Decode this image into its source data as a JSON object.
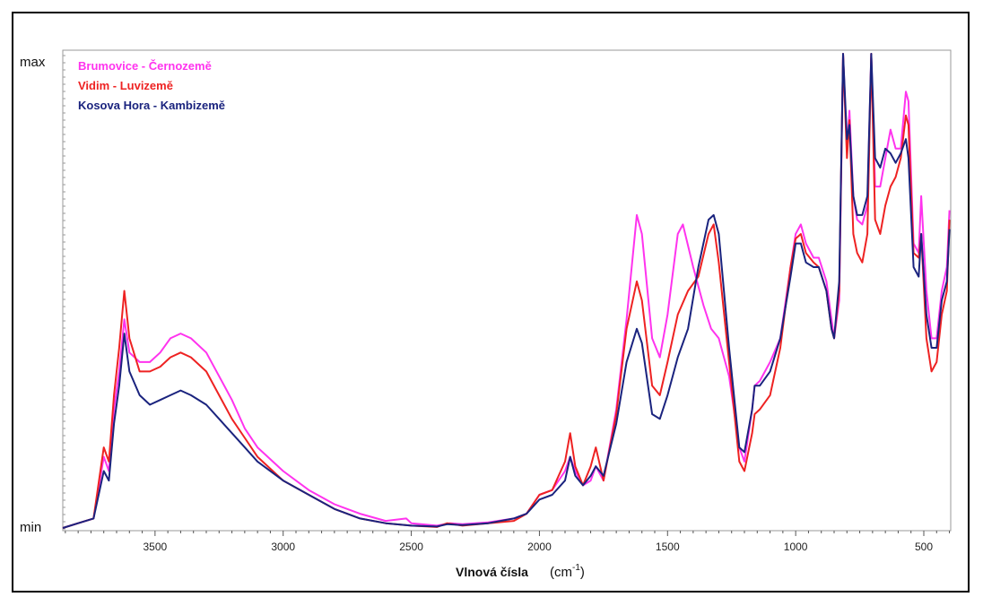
{
  "chart_data": {
    "type": "line",
    "xlabel": "Vlnová čísla",
    "xunit_prefix": "(cm",
    "xunit_sup": "-1",
    "xunit_suffix": ")",
    "x_reversed": true,
    "xlim": [
      3860,
      395
    ],
    "ylim": [
      0,
      1
    ],
    "y_tick_labels": {
      "max": "max",
      "min": "min"
    },
    "x_ticks": [
      3500,
      3000,
      2500,
      2000,
      1500,
      1000,
      500
    ],
    "x_tick_labels": [
      "3500",
      "3000",
      "2500",
      "2000",
      "1500",
      "1000",
      "500"
    ],
    "grid": false,
    "legend": "top-left",
    "series": [
      {
        "name": "Brumovice - Černozemě",
        "color": "#ff33ee",
        "points": [
          [
            3860,
            0.0
          ],
          [
            3800,
            0.01
          ],
          [
            3740,
            0.02
          ],
          [
            3700,
            0.15
          ],
          [
            3680,
            0.12
          ],
          [
            3660,
            0.25
          ],
          [
            3640,
            0.33
          ],
          [
            3620,
            0.44
          ],
          [
            3600,
            0.37
          ],
          [
            3560,
            0.35
          ],
          [
            3520,
            0.35
          ],
          [
            3480,
            0.37
          ],
          [
            3440,
            0.4
          ],
          [
            3400,
            0.41
          ],
          [
            3360,
            0.4
          ],
          [
            3300,
            0.37
          ],
          [
            3250,
            0.32
          ],
          [
            3200,
            0.27
          ],
          [
            3150,
            0.21
          ],
          [
            3100,
            0.17
          ],
          [
            3000,
            0.12
          ],
          [
            2900,
            0.08
          ],
          [
            2800,
            0.05
          ],
          [
            2700,
            0.03
          ],
          [
            2600,
            0.015
          ],
          [
            2520,
            0.02
          ],
          [
            2500,
            0.01
          ],
          [
            2400,
            0.005
          ],
          [
            2350,
            0.01
          ],
          [
            2300,
            0.008
          ],
          [
            2200,
            0.012
          ],
          [
            2100,
            0.02
          ],
          [
            2050,
            0.03
          ],
          [
            2000,
            0.07
          ],
          [
            1950,
            0.08
          ],
          [
            1900,
            0.12
          ],
          [
            1880,
            0.15
          ],
          [
            1860,
            0.12
          ],
          [
            1830,
            0.09
          ],
          [
            1800,
            0.1
          ],
          [
            1780,
            0.13
          ],
          [
            1750,
            0.1
          ],
          [
            1700,
            0.25
          ],
          [
            1660,
            0.44
          ],
          [
            1620,
            0.66
          ],
          [
            1600,
            0.62
          ],
          [
            1560,
            0.4
          ],
          [
            1530,
            0.36
          ],
          [
            1500,
            0.45
          ],
          [
            1460,
            0.62
          ],
          [
            1440,
            0.64
          ],
          [
            1400,
            0.55
          ],
          [
            1360,
            0.47
          ],
          [
            1330,
            0.42
          ],
          [
            1300,
            0.4
          ],
          [
            1260,
            0.32
          ],
          [
            1220,
            0.17
          ],
          [
            1200,
            0.14
          ],
          [
            1170,
            0.25
          ],
          [
            1160,
            0.3
          ],
          [
            1140,
            0.31
          ],
          [
            1100,
            0.35
          ],
          [
            1060,
            0.4
          ],
          [
            1020,
            0.55
          ],
          [
            1000,
            0.62
          ],
          [
            980,
            0.64
          ],
          [
            960,
            0.6
          ],
          [
            930,
            0.57
          ],
          [
            910,
            0.57
          ],
          [
            880,
            0.52
          ],
          [
            860,
            0.44
          ],
          [
            850,
            0.4
          ],
          [
            830,
            0.48
          ],
          [
            815,
            1.0
          ],
          [
            800,
            0.8
          ],
          [
            790,
            0.88
          ],
          [
            775,
            0.7
          ],
          [
            760,
            0.65
          ],
          [
            740,
            0.64
          ],
          [
            720,
            0.68
          ],
          [
            705,
            1.0
          ],
          [
            690,
            0.72
          ],
          [
            670,
            0.72
          ],
          [
            650,
            0.78
          ],
          [
            630,
            0.84
          ],
          [
            610,
            0.8
          ],
          [
            590,
            0.8
          ],
          [
            570,
            0.92
          ],
          [
            560,
            0.9
          ],
          [
            540,
            0.6
          ],
          [
            520,
            0.58
          ],
          [
            510,
            0.7
          ],
          [
            490,
            0.5
          ],
          [
            470,
            0.4
          ],
          [
            450,
            0.4
          ],
          [
            430,
            0.5
          ],
          [
            410,
            0.55
          ],
          [
            400,
            0.67
          ]
        ]
      },
      {
        "name": "Vidim - Luvizemě",
        "color": "#ee2222",
        "points": [
          [
            3860,
            0.0
          ],
          [
            3800,
            0.01
          ],
          [
            3740,
            0.02
          ],
          [
            3700,
            0.17
          ],
          [
            3680,
            0.14
          ],
          [
            3660,
            0.28
          ],
          [
            3640,
            0.38
          ],
          [
            3620,
            0.5
          ],
          [
            3600,
            0.4
          ],
          [
            3560,
            0.33
          ],
          [
            3520,
            0.33
          ],
          [
            3480,
            0.34
          ],
          [
            3440,
            0.36
          ],
          [
            3400,
            0.37
          ],
          [
            3360,
            0.36
          ],
          [
            3300,
            0.33
          ],
          [
            3250,
            0.28
          ],
          [
            3200,
            0.23
          ],
          [
            3150,
            0.19
          ],
          [
            3100,
            0.15
          ],
          [
            3000,
            0.1
          ],
          [
            2900,
            0.07
          ],
          [
            2800,
            0.04
          ],
          [
            2700,
            0.02
          ],
          [
            2600,
            0.01
          ],
          [
            2500,
            0.005
          ],
          [
            2400,
            0.002
          ],
          [
            2360,
            0.01
          ],
          [
            2300,
            0.005
          ],
          [
            2200,
            0.01
          ],
          [
            2100,
            0.015
          ],
          [
            2050,
            0.03
          ],
          [
            2000,
            0.07
          ],
          [
            1950,
            0.08
          ],
          [
            1900,
            0.14
          ],
          [
            1880,
            0.2
          ],
          [
            1860,
            0.13
          ],
          [
            1830,
            0.09
          ],
          [
            1800,
            0.13
          ],
          [
            1780,
            0.17
          ],
          [
            1750,
            0.1
          ],
          [
            1700,
            0.24
          ],
          [
            1660,
            0.42
          ],
          [
            1620,
            0.52
          ],
          [
            1600,
            0.48
          ],
          [
            1560,
            0.3
          ],
          [
            1530,
            0.28
          ],
          [
            1500,
            0.35
          ],
          [
            1460,
            0.45
          ],
          [
            1420,
            0.5
          ],
          [
            1380,
            0.53
          ],
          [
            1340,
            0.62
          ],
          [
            1320,
            0.64
          ],
          [
            1300,
            0.56
          ],
          [
            1260,
            0.35
          ],
          [
            1220,
            0.14
          ],
          [
            1200,
            0.12
          ],
          [
            1170,
            0.2
          ],
          [
            1160,
            0.24
          ],
          [
            1140,
            0.25
          ],
          [
            1100,
            0.28
          ],
          [
            1060,
            0.38
          ],
          [
            1020,
            0.55
          ],
          [
            1000,
            0.61
          ],
          [
            980,
            0.62
          ],
          [
            960,
            0.58
          ],
          [
            930,
            0.56
          ],
          [
            910,
            0.55
          ],
          [
            880,
            0.5
          ],
          [
            860,
            0.42
          ],
          [
            850,
            0.4
          ],
          [
            830,
            0.5
          ],
          [
            815,
            1.0
          ],
          [
            800,
            0.78
          ],
          [
            790,
            0.86
          ],
          [
            775,
            0.62
          ],
          [
            760,
            0.58
          ],
          [
            740,
            0.56
          ],
          [
            720,
            0.62
          ],
          [
            705,
            1.0
          ],
          [
            690,
            0.65
          ],
          [
            670,
            0.62
          ],
          [
            650,
            0.68
          ],
          [
            630,
            0.72
          ],
          [
            610,
            0.74
          ],
          [
            590,
            0.78
          ],
          [
            570,
            0.87
          ],
          [
            560,
            0.85
          ],
          [
            540,
            0.58
          ],
          [
            520,
            0.57
          ],
          [
            510,
            0.62
          ],
          [
            490,
            0.4
          ],
          [
            470,
            0.33
          ],
          [
            450,
            0.35
          ],
          [
            430,
            0.45
          ],
          [
            410,
            0.5
          ],
          [
            400,
            0.65
          ]
        ]
      },
      {
        "name": "Kosova Hora - Kambizemě",
        "color": "#1a237e",
        "points": [
          [
            3860,
            0.0
          ],
          [
            3800,
            0.01
          ],
          [
            3740,
            0.02
          ],
          [
            3700,
            0.12
          ],
          [
            3680,
            0.1
          ],
          [
            3660,
            0.22
          ],
          [
            3640,
            0.3
          ],
          [
            3620,
            0.41
          ],
          [
            3600,
            0.33
          ],
          [
            3560,
            0.28
          ],
          [
            3520,
            0.26
          ],
          [
            3480,
            0.27
          ],
          [
            3440,
            0.28
          ],
          [
            3400,
            0.29
          ],
          [
            3360,
            0.28
          ],
          [
            3300,
            0.26
          ],
          [
            3250,
            0.23
          ],
          [
            3200,
            0.2
          ],
          [
            3150,
            0.17
          ],
          [
            3100,
            0.14
          ],
          [
            3000,
            0.1
          ],
          [
            2900,
            0.07
          ],
          [
            2800,
            0.04
          ],
          [
            2700,
            0.02
          ],
          [
            2600,
            0.01
          ],
          [
            2500,
            0.005
          ],
          [
            2400,
            0.003
          ],
          [
            2360,
            0.008
          ],
          [
            2300,
            0.006
          ],
          [
            2200,
            0.01
          ],
          [
            2100,
            0.02
          ],
          [
            2050,
            0.03
          ],
          [
            2000,
            0.06
          ],
          [
            1950,
            0.07
          ],
          [
            1900,
            0.1
          ],
          [
            1880,
            0.15
          ],
          [
            1860,
            0.11
          ],
          [
            1830,
            0.09
          ],
          [
            1800,
            0.11
          ],
          [
            1780,
            0.13
          ],
          [
            1750,
            0.11
          ],
          [
            1700,
            0.22
          ],
          [
            1660,
            0.35
          ],
          [
            1620,
            0.42
          ],
          [
            1600,
            0.39
          ],
          [
            1560,
            0.24
          ],
          [
            1530,
            0.23
          ],
          [
            1500,
            0.28
          ],
          [
            1460,
            0.36
          ],
          [
            1420,
            0.42
          ],
          [
            1380,
            0.55
          ],
          [
            1340,
            0.65
          ],
          [
            1320,
            0.66
          ],
          [
            1300,
            0.62
          ],
          [
            1260,
            0.38
          ],
          [
            1220,
            0.17
          ],
          [
            1200,
            0.16
          ],
          [
            1170,
            0.25
          ],
          [
            1160,
            0.3
          ],
          [
            1140,
            0.3
          ],
          [
            1100,
            0.33
          ],
          [
            1060,
            0.4
          ],
          [
            1020,
            0.53
          ],
          [
            1000,
            0.6
          ],
          [
            980,
            0.6
          ],
          [
            960,
            0.56
          ],
          [
            930,
            0.55
          ],
          [
            910,
            0.55
          ],
          [
            880,
            0.5
          ],
          [
            860,
            0.42
          ],
          [
            850,
            0.4
          ],
          [
            830,
            0.52
          ],
          [
            815,
            1.0
          ],
          [
            800,
            0.82
          ],
          [
            790,
            0.85
          ],
          [
            775,
            0.7
          ],
          [
            760,
            0.66
          ],
          [
            740,
            0.66
          ],
          [
            720,
            0.7
          ],
          [
            705,
            1.0
          ],
          [
            690,
            0.78
          ],
          [
            670,
            0.76
          ],
          [
            650,
            0.8
          ],
          [
            630,
            0.79
          ],
          [
            610,
            0.77
          ],
          [
            590,
            0.79
          ],
          [
            570,
            0.82
          ],
          [
            560,
            0.78
          ],
          [
            540,
            0.55
          ],
          [
            520,
            0.53
          ],
          [
            510,
            0.62
          ],
          [
            490,
            0.45
          ],
          [
            470,
            0.38
          ],
          [
            450,
            0.38
          ],
          [
            430,
            0.48
          ],
          [
            410,
            0.52
          ],
          [
            400,
            0.63
          ]
        ]
      }
    ]
  }
}
